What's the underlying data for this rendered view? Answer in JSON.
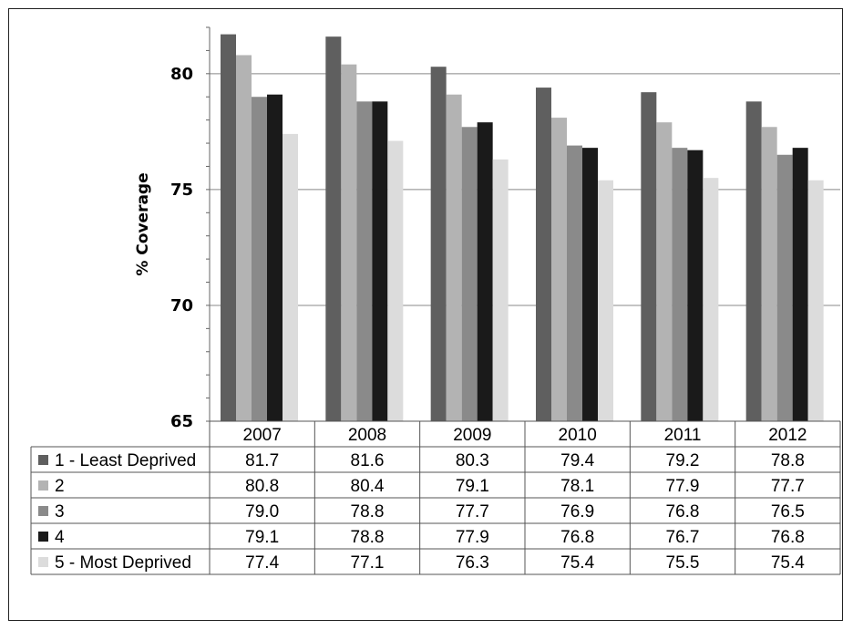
{
  "chart_data": {
    "type": "bar",
    "ylabel": "% Coverage",
    "ylim": [
      65,
      82
    ],
    "yticks": [
      65,
      70,
      75,
      80
    ],
    "grid": true,
    "categories": [
      "2007",
      "2008",
      "2009",
      "2010",
      "2011",
      "2012"
    ],
    "series": [
      {
        "name": "1 - Least Deprived",
        "color": "#5f5f5f",
        "values": [
          "81.7",
          "81.6",
          "80.3",
          "79.4",
          "79.2",
          "78.8"
        ]
      },
      {
        "name": "2",
        "color": "#b3b3b3",
        "values": [
          "80.8",
          "80.4",
          "79.1",
          "78.1",
          "77.9",
          "77.7"
        ]
      },
      {
        "name": "3",
        "color": "#8a8a8a",
        "values": [
          "79.0",
          "78.8",
          "77.7",
          "76.9",
          "76.8",
          "76.5"
        ]
      },
      {
        "name": "4",
        "color": "#1a1a1a",
        "values": [
          "79.1",
          "78.8",
          "77.9",
          "76.8",
          "76.7",
          "76.8"
        ]
      },
      {
        "name": "5 - Most Deprived",
        "color": "#dcdcdc",
        "values": [
          "77.4",
          "77.1",
          "76.3",
          "75.4",
          "75.5",
          "75.4"
        ]
      }
    ],
    "legend": "data-table"
  }
}
